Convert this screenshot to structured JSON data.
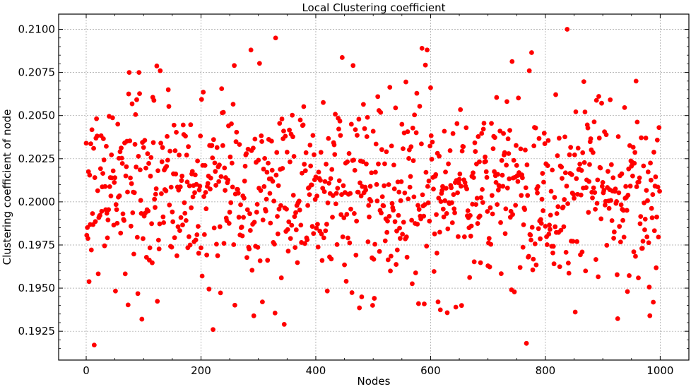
{
  "chart_data": {
    "type": "scatter",
    "title": "Local Clustering coefficient",
    "xlabel": "Nodes",
    "ylabel": "Clustering coefficient of node",
    "xlim": [
      -48,
      1050
    ],
    "ylim": [
      0.19083,
      0.21088
    ],
    "xticks": [
      0,
      200,
      400,
      600,
      800,
      1000
    ],
    "xtick_labels": [
      "0",
      "200",
      "400",
      "600",
      "800",
      "1000"
    ],
    "yticks": [
      0.1925,
      0.195,
      0.1975,
      0.2,
      0.2025,
      0.205,
      0.2075,
      0.21
    ],
    "ytick_labels": [
      "0.1925",
      "0.1950",
      "0.1975",
      "0.2000",
      "0.2025",
      "0.2050",
      "0.2075",
      "0.2100"
    ],
    "grid": true,
    "marker_color": "#ff0000",
    "n_points": 1000,
    "y_summary": {
      "center": 0.2008,
      "spread": 0.0028,
      "min": 0.1917,
      "max": 0.21
    },
    "notable_points": [
      {
        "x": 14,
        "y": 0.1917
      },
      {
        "x": 97,
        "y": 0.1932
      },
      {
        "x": 221,
        "y": 0.1926
      },
      {
        "x": 767,
        "y": 0.1918
      },
      {
        "x": 982,
        "y": 0.1934
      },
      {
        "x": 330,
        "y": 0.2095
      },
      {
        "x": 838,
        "y": 0.21
      },
      {
        "x": 258,
        "y": 0.2079
      },
      {
        "x": 585,
        "y": 0.2089
      },
      {
        "x": 594,
        "y": 0.2088
      },
      {
        "x": 465,
        "y": 0.2079
      },
      {
        "x": 772,
        "y": 0.2076
      },
      {
        "x": 75,
        "y": 0.2075
      },
      {
        "x": 92,
        "y": 0.2075
      },
      {
        "x": 129,
        "y": 0.2076
      },
      {
        "x": 307,
        "y": 0.1942
      },
      {
        "x": 499,
        "y": 0.194
      },
      {
        "x": 579,
        "y": 0.1941
      },
      {
        "x": 613,
        "y": 0.1942
      },
      {
        "x": 644,
        "y": 0.1939
      },
      {
        "x": 943,
        "y": 0.1948
      },
      {
        "x": 741,
        "y": 0.1949
      }
    ]
  }
}
